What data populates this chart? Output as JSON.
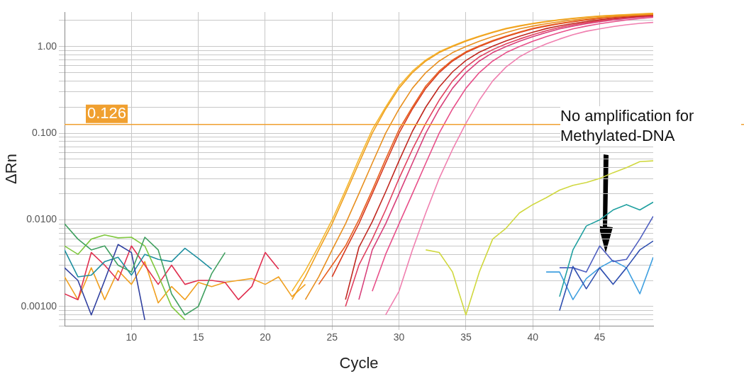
{
  "chart_data": {
    "type": "line",
    "xlabel": "Cycle",
    "ylabel": "ΔRn",
    "log": "y",
    "grid": true,
    "legend": false,
    "marker": "none",
    "line_style": "solid",
    "xlim": [
      5,
      49
    ],
    "xticks": [
      10,
      15,
      20,
      25,
      30,
      35,
      40,
      45
    ],
    "ylim": [
      0.0006,
      2.5
    ],
    "yticks": [
      {
        "value": 0.0006,
        "label": null
      },
      {
        "value": 0.0007,
        "label": null
      },
      {
        "value": 0.0008,
        "label": null
      },
      {
        "value": 0.0009,
        "label": null
      },
      {
        "value": 0.001,
        "label": "0.00100"
      },
      {
        "value": 0.002,
        "label": null
      },
      {
        "value": 0.003,
        "label": null
      },
      {
        "value": 0.004,
        "label": null
      },
      {
        "value": 0.005,
        "label": null
      },
      {
        "value": 0.006,
        "label": null
      },
      {
        "value": 0.007,
        "label": null
      },
      {
        "value": 0.008,
        "label": null
      },
      {
        "value": 0.009,
        "label": null
      },
      {
        "value": 0.01,
        "label": "0.0100"
      },
      {
        "value": 0.02,
        "label": null
      },
      {
        "value": 0.03,
        "label": null
      },
      {
        "value": 0.04,
        "label": null
      },
      {
        "value": 0.05,
        "label": null
      },
      {
        "value": 0.06,
        "label": null
      },
      {
        "value": 0.07,
        "label": null
      },
      {
        "value": 0.08,
        "label": null
      },
      {
        "value": 0.09,
        "label": null
      },
      {
        "value": 0.1,
        "label": "0.100"
      },
      {
        "value": 0.2,
        "label": null
      },
      {
        "value": 0.3,
        "label": null
      },
      {
        "value": 0.4,
        "label": null
      },
      {
        "value": 0.5,
        "label": null
      },
      {
        "value": 0.6,
        "label": null
      },
      {
        "value": 0.7,
        "label": null
      },
      {
        "value": 0.8,
        "label": null
      },
      {
        "value": 0.9,
        "label": null
      },
      {
        "value": 1,
        "label": "1.00"
      },
      {
        "value": 2,
        "label": null
      }
    ],
    "ref_lines": [
      {
        "axis": "y",
        "value": 0.126,
        "label": "0.126",
        "color": "#f0a030"
      }
    ],
    "annotations": [
      "No amplification for Methylated-DNA"
    ],
    "series": [
      {
        "color": "#f0a020",
        "x": [
          22,
          23,
          24,
          25,
          26,
          27,
          28,
          29,
          30,
          31,
          32,
          33,
          34,
          35,
          36,
          37,
          38,
          39,
          40,
          41,
          42,
          43,
          44,
          45,
          46,
          47,
          48,
          49
        ],
        "values": [
          0.0012,
          0.0022,
          0.0045,
          0.009,
          0.02,
          0.045,
          0.1,
          0.19,
          0.33,
          0.5,
          0.68,
          0.85,
          1.0,
          1.15,
          1.3,
          1.45,
          1.6,
          1.72,
          1.83,
          1.93,
          2.02,
          2.1,
          2.17,
          2.23,
          2.28,
          2.32,
          2.36,
          2.4
        ]
      },
      {
        "color": "#f5b830",
        "x": [
          22,
          23,
          24,
          25,
          26,
          27,
          28,
          29,
          30,
          31,
          32,
          33,
          34,
          35,
          36,
          37,
          38,
          39,
          40,
          41,
          42,
          43,
          44,
          45,
          46,
          47,
          48,
          49
        ],
        "values": [
          0.0015,
          0.0026,
          0.005,
          0.01,
          0.022,
          0.05,
          0.11,
          0.2,
          0.35,
          0.52,
          0.7,
          0.87,
          1.02,
          1.17,
          1.32,
          1.47,
          1.62,
          1.74,
          1.85,
          1.95,
          2.04,
          2.12,
          2.19,
          2.25,
          2.3,
          2.34,
          2.38,
          2.42
        ]
      },
      {
        "color": "#e89020",
        "x": [
          23,
          24,
          25,
          26,
          27,
          28,
          29,
          30,
          31,
          32,
          33,
          34,
          35,
          36,
          37,
          38,
          39,
          40,
          41,
          42,
          43,
          44,
          45,
          46,
          47,
          48,
          49
        ],
        "values": [
          0.0012,
          0.0022,
          0.0045,
          0.009,
          0.02,
          0.045,
          0.1,
          0.19,
          0.33,
          0.5,
          0.68,
          0.85,
          1.0,
          1.15,
          1.3,
          1.45,
          1.6,
          1.72,
          1.83,
          1.93,
          2.02,
          2.1,
          2.17,
          2.23,
          2.28,
          2.32,
          2.36
        ]
      },
      {
        "color": "#e86020",
        "x": [
          24,
          25,
          26,
          27,
          28,
          29,
          30,
          31,
          32,
          33,
          34,
          35,
          36,
          37,
          38,
          39,
          40,
          41,
          42,
          43,
          44,
          45,
          46,
          47,
          48,
          49
        ],
        "values": [
          0.0018,
          0.003,
          0.005,
          0.01,
          0.022,
          0.05,
          0.11,
          0.2,
          0.35,
          0.52,
          0.7,
          0.87,
          1.02,
          1.17,
          1.32,
          1.47,
          1.62,
          1.74,
          1.85,
          1.95,
          2.04,
          2.12,
          2.19,
          2.25,
          2.3,
          2.34
        ]
      },
      {
        "color": "#d83a20",
        "x": [
          25,
          26,
          27,
          28,
          29,
          30,
          31,
          32,
          33,
          34,
          35,
          36,
          37,
          38,
          39,
          40,
          41,
          42,
          43,
          44,
          45,
          46,
          47,
          48,
          49
        ],
        "values": [
          0.0022,
          0.0045,
          0.009,
          0.02,
          0.045,
          0.1,
          0.19,
          0.33,
          0.5,
          0.68,
          0.85,
          1.0,
          1.15,
          1.3,
          1.45,
          1.6,
          1.72,
          1.83,
          1.93,
          2.02,
          2.1,
          2.17,
          2.23,
          2.28,
          2.32
        ]
      },
      {
        "color": "#c02820",
        "x": [
          26,
          27,
          28,
          29,
          30,
          31,
          32,
          33,
          34,
          35,
          36,
          37,
          38,
          39,
          40,
          41,
          42,
          43,
          44,
          45,
          46,
          47,
          48,
          49
        ],
        "values": [
          0.0012,
          0.0048,
          0.0095,
          0.021,
          0.048,
          0.105,
          0.2,
          0.34,
          0.51,
          0.69,
          0.86,
          1.01,
          1.16,
          1.31,
          1.46,
          1.61,
          1.73,
          1.84,
          1.94,
          2.03,
          2.11,
          2.18,
          2.24,
          2.29
        ]
      },
      {
        "color": "#e04060",
        "x": [
          26,
          27,
          28,
          29,
          30,
          31,
          32,
          33,
          34,
          35,
          36,
          37,
          38,
          39,
          40,
          41,
          42,
          43,
          44,
          45,
          46,
          47,
          48,
          49
        ],
        "values": [
          0.001,
          0.003,
          0.006,
          0.013,
          0.03,
          0.065,
          0.13,
          0.24,
          0.4,
          0.58,
          0.76,
          0.92,
          1.07,
          1.22,
          1.37,
          1.52,
          1.66,
          1.78,
          1.88,
          1.98,
          2.07,
          2.15,
          2.21,
          2.26
        ]
      },
      {
        "color": "#d8407a",
        "x": [
          27,
          28,
          29,
          30,
          31,
          32,
          33,
          34,
          35,
          36,
          37,
          38,
          39,
          40,
          41,
          42,
          43,
          44,
          45,
          46,
          47,
          48,
          49
        ],
        "values": [
          0.0012,
          0.0045,
          0.009,
          0.02,
          0.045,
          0.1,
          0.19,
          0.33,
          0.5,
          0.68,
          0.85,
          1.0,
          1.15,
          1.3,
          1.45,
          1.6,
          1.72,
          1.83,
          1.93,
          2.02,
          2.1,
          2.17,
          2.23
        ]
      },
      {
        "color": "#e8508a",
        "x": [
          28,
          29,
          30,
          31,
          32,
          33,
          34,
          35,
          36,
          37,
          38,
          39,
          40,
          41,
          42,
          43,
          44,
          45,
          46,
          47,
          48,
          49
        ],
        "values": [
          0.0015,
          0.004,
          0.009,
          0.02,
          0.045,
          0.1,
          0.19,
          0.33,
          0.5,
          0.68,
          0.85,
          1.0,
          1.15,
          1.3,
          1.45,
          1.6,
          1.72,
          1.83,
          1.93,
          2.02,
          2.1,
          2.17
        ]
      },
      {
        "color": "#f080b0",
        "x": [
          29,
          30,
          31,
          32,
          33,
          34,
          35,
          36,
          37,
          38,
          39,
          40,
          41,
          42,
          43,
          44,
          45,
          46,
          47,
          48,
          49
        ],
        "values": [
          0.0008,
          0.0015,
          0.0045,
          0.012,
          0.03,
          0.065,
          0.13,
          0.24,
          0.4,
          0.58,
          0.76,
          0.92,
          1.07,
          1.22,
          1.37,
          1.5,
          1.6,
          1.7,
          1.78,
          1.85,
          1.9
        ]
      },
      {
        "color": "#d0d840",
        "x": [
          32,
          33,
          34,
          35,
          36,
          37,
          38,
          39,
          40,
          41,
          42,
          43,
          44,
          45,
          46,
          47,
          48,
          49
        ],
        "values": [
          0.0045,
          0.0042,
          0.0025,
          0.0008,
          0.0025,
          0.006,
          0.008,
          0.012,
          0.015,
          0.018,
          0.022,
          0.025,
          0.027,
          0.03,
          0.035,
          0.04,
          0.047,
          0.048
        ]
      },
      {
        "color": "#40a060",
        "x": [
          5,
          6,
          7,
          8,
          9,
          10,
          11,
          12,
          13,
          14,
          15,
          16,
          17
        ],
        "values": [
          0.009,
          0.006,
          0.0045,
          0.005,
          0.003,
          0.0025,
          0.0063,
          0.0045,
          0.0014,
          0.0008,
          0.001,
          0.0024,
          0.0042
        ]
      },
      {
        "color": "#80c840",
        "x": [
          5,
          6,
          7,
          8,
          9,
          10,
          11,
          12,
          13,
          14
        ],
        "values": [
          0.005,
          0.004,
          0.006,
          0.0067,
          0.0062,
          0.0063,
          0.005,
          0.0023,
          0.001,
          0.0007
        ]
      },
      {
        "color": "#3040a0",
        "x": [
          5,
          6,
          7,
          8,
          9,
          10,
          11
        ],
        "values": [
          0.0028,
          0.002,
          0.0008,
          0.002,
          0.0052,
          0.0042,
          0.0007
        ]
      },
      {
        "color": "#2090a0",
        "x": [
          5,
          6,
          7,
          8,
          9,
          10,
          11,
          12,
          13,
          14,
          15,
          16
        ],
        "values": [
          0.0045,
          0.0022,
          0.0023,
          0.0033,
          0.0037,
          0.0023,
          0.004,
          0.0035,
          0.0033,
          0.0047,
          0.0036,
          0.0027
        ]
      },
      {
        "color": "#e03050",
        "x": [
          5,
          6,
          7,
          8,
          9,
          10,
          11,
          12,
          13,
          14,
          15,
          16,
          17,
          18,
          19,
          20,
          21
        ],
        "values": [
          0.0014,
          0.0012,
          0.0042,
          0.003,
          0.002,
          0.005,
          0.003,
          0.0018,
          0.003,
          0.0018,
          0.002,
          0.002,
          0.0019,
          0.0012,
          0.0017,
          0.0042,
          0.0027
        ]
      },
      {
        "color": "#f0a020",
        "x": [
          5,
          6,
          7,
          8,
          9,
          10,
          11,
          12,
          13,
          14,
          15,
          16,
          17,
          18,
          19,
          20,
          21,
          22,
          23
        ],
        "values": [
          0.0022,
          0.0012,
          0.0028,
          0.0012,
          0.0026,
          0.0018,
          0.0033,
          0.0011,
          0.0017,
          0.0012,
          0.0019,
          0.0017,
          0.0019,
          0.002,
          0.0021,
          0.0018,
          0.0022,
          0.0013,
          0.0018
        ]
      },
      {
        "color": "#3050b0",
        "x": [
          42,
          43,
          44,
          45,
          46,
          47,
          48,
          49
        ],
        "values": [
          0.0009,
          0.0029,
          0.0016,
          0.0028,
          0.0018,
          0.0028,
          0.0045,
          0.0057
        ]
      },
      {
        "color": "#20a0a0",
        "x": [
          42,
          43,
          44,
          45,
          46,
          47,
          48,
          49
        ],
        "values": [
          0.0013,
          0.0045,
          0.0085,
          0.01,
          0.013,
          0.015,
          0.013,
          0.016
        ]
      },
      {
        "color": "#5060c0",
        "x": [
          42,
          43,
          44,
          45,
          46,
          47,
          48,
          49
        ],
        "values": [
          0.0028,
          0.0028,
          0.0025,
          0.005,
          0.0033,
          0.0035,
          0.006,
          0.011
        ]
      },
      {
        "color": "#40a0e0",
        "x": [
          41,
          42,
          43,
          44,
          45,
          46,
          47,
          48,
          49
        ],
        "values": [
          0.0025,
          0.0025,
          0.0012,
          0.0021,
          0.0028,
          0.0034,
          0.0028,
          0.0014,
          0.0037
        ]
      }
    ]
  }
}
